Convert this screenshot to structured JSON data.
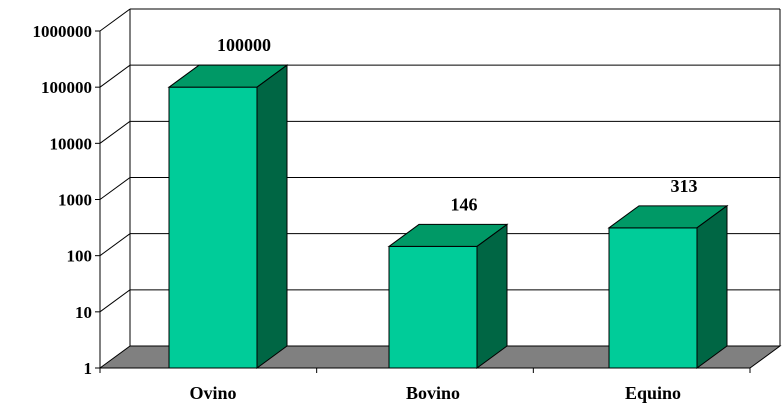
{
  "chart_data": {
    "type": "bar",
    "three_d": true,
    "y_scale": "log",
    "ylim": [
      1,
      1000000
    ],
    "y_ticks": [
      "1",
      "10",
      "100",
      "1000",
      "10000",
      "100000",
      "1000000"
    ],
    "categories": [
      "Ovino",
      "Bovino",
      "Equino"
    ],
    "values": [
      100000,
      146,
      313
    ],
    "data_labels": [
      "100000",
      "146",
      "313"
    ],
    "grid": true,
    "legend": "none",
    "title": "",
    "xlabel": "",
    "ylabel": "",
    "colors": {
      "bar_front": "#00CC99",
      "bar_top": "#009966",
      "bar_side": "#006644",
      "floor": "#808080",
      "gridline": "#000000"
    }
  }
}
